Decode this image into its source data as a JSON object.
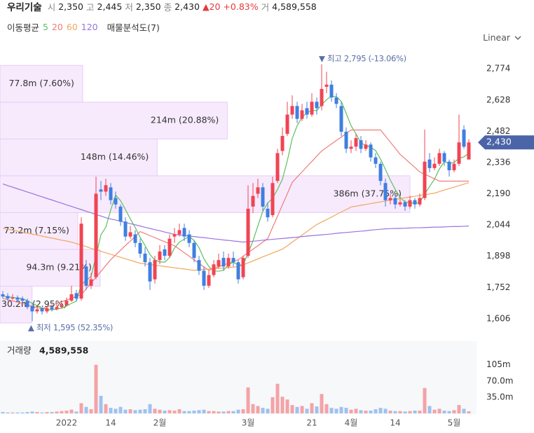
{
  "header": {
    "name": "우리기술",
    "quote": [
      {
        "label": "시",
        "value": "2,350"
      },
      {
        "label": "고",
        "value": "2,445"
      },
      {
        "label": "저",
        "value": "2,350"
      },
      {
        "label": "종",
        "value": "2,430"
      }
    ],
    "change": "▲20 +0.83%",
    "volume_label": "거",
    "volume": "4,589,558"
  },
  "legend": {
    "title": "이동평균",
    "profile": "매물분석도(7)"
  },
  "scale_menu": "Linear",
  "chart_data": {
    "type": "candlestick",
    "x": [
      null,
      null,
      null,
      null,
      null,
      null,
      null,
      null,
      null,
      null,
      null,
      null,
      null,
      "2022",
      null,
      null,
      null,
      null,
      null,
      null,
      null,
      null,
      "14",
      null,
      null,
      null,
      null,
      null,
      null,
      null,
      null,
      null,
      "2월",
      null,
      null,
      null,
      null,
      null,
      null,
      null,
      null,
      null,
      null,
      null,
      null,
      null,
      null,
      null,
      null,
      null,
      "3월",
      null,
      null,
      null,
      null,
      null,
      null,
      null,
      null,
      null,
      null,
      null,
      null,
      "21",
      null,
      null,
      null,
      null,
      null,
      null,
      null,
      "4월",
      null,
      null,
      null,
      null,
      null,
      null,
      null,
      null,
      "14",
      null,
      null,
      null,
      null,
      null,
      null,
      null,
      null,
      null,
      null,
      null,
      "5월",
      null,
      null,
      null
    ],
    "candles": [
      [
        1720,
        1735,
        1700,
        1710
      ],
      [
        1712,
        1725,
        1690,
        1700
      ],
      [
        1700,
        1720,
        1695,
        1705
      ],
      [
        1705,
        1715,
        1685,
        1695
      ],
      [
        1700,
        1710,
        1680,
        1690
      ],
      [
        1690,
        1700,
        1650,
        1660
      ],
      [
        1665,
        1680,
        1595,
        1640
      ],
      [
        1640,
        1665,
        1630,
        1650
      ],
      [
        1655,
        1660,
        1625,
        1640
      ],
      [
        1640,
        1665,
        1630,
        1655
      ],
      [
        1660,
        1670,
        1640,
        1650
      ],
      [
        1650,
        1675,
        1645,
        1660
      ],
      [
        1660,
        1690,
        1655,
        1670
      ],
      [
        1670,
        1705,
        1665,
        1690
      ],
      [
        1690,
        1760,
        1685,
        1720
      ],
      [
        1725,
        1740,
        1690,
        1700
      ],
      [
        1700,
        2080,
        1690,
        2050
      ],
      [
        1850,
        1880,
        1740,
        1760
      ],
      [
        1760,
        1820,
        1745,
        1790
      ],
      [
        1800,
        2270,
        1790,
        2190
      ],
      [
        2210,
        2250,
        2160,
        2200
      ],
      [
        2200,
        2260,
        2180,
        2230
      ],
      [
        2220,
        2240,
        2140,
        2160
      ],
      [
        2170,
        2200,
        2120,
        2140
      ],
      [
        2130,
        2140,
        2040,
        2060
      ],
      [
        2060,
        2080,
        1970,
        1990
      ],
      [
        1990,
        2040,
        1980,
        2010
      ],
      [
        2000,
        2020,
        1940,
        1960
      ],
      [
        1960,
        1980,
        1890,
        1910
      ],
      [
        1910,
        1940,
        1850,
        1870
      ],
      [
        1870,
        1890,
        1740,
        1780
      ],
      [
        1790,
        1900,
        1770,
        1880
      ],
      [
        1880,
        1950,
        1860,
        1920
      ],
      [
        1930,
        1950,
        1880,
        1900
      ],
      [
        1900,
        2000,
        1890,
        1980
      ],
      [
        1990,
        2030,
        1960,
        2000
      ],
      [
        2000,
        2050,
        1990,
        2020
      ],
      [
        2030,
        2050,
        1970,
        1990
      ],
      [
        2000,
        2020,
        1940,
        1960
      ],
      [
        1960,
        1970,
        1870,
        1890
      ],
      [
        1880,
        1900,
        1810,
        1830
      ],
      [
        1830,
        1850,
        1740,
        1760
      ],
      [
        1760,
        1830,
        1750,
        1810
      ],
      [
        1810,
        1880,
        1800,
        1860
      ],
      [
        1850,
        1910,
        1840,
        1880
      ],
      [
        1890,
        1920,
        1830,
        1850
      ],
      [
        1850,
        1910,
        1840,
        1890
      ],
      [
        1890,
        1920,
        1850,
        1870
      ],
      [
        1870,
        1880,
        1770,
        1790
      ],
      [
        1800,
        1900,
        1790,
        1890
      ],
      [
        1900,
        2230,
        1890,
        2120
      ],
      [
        2130,
        2240,
        2100,
        2180
      ],
      [
        2190,
        2260,
        2170,
        2220
      ],
      [
        2220,
        2240,
        2110,
        2130
      ],
      [
        2120,
        2150,
        2060,
        2080
      ],
      [
        2090,
        2270,
        2080,
        2240
      ],
      [
        2250,
        2400,
        2240,
        2380
      ],
      [
        2390,
        2500,
        2370,
        2460
      ],
      [
        2470,
        2620,
        2460,
        2560
      ],
      [
        2560,
        2650,
        2540,
        2600
      ],
      [
        2600,
        2620,
        2520,
        2540
      ],
      [
        2540,
        2610,
        2530,
        2580
      ],
      [
        2590,
        2620,
        2540,
        2560
      ],
      [
        2560,
        2660,
        2550,
        2620
      ],
      [
        2620,
        2640,
        2560,
        2590
      ],
      [
        2600,
        2795,
        2580,
        2680
      ],
      [
        2690,
        2760,
        2660,
        2700
      ],
      [
        2700,
        2720,
        2620,
        2640
      ],
      [
        2640,
        2660,
        2590,
        2610
      ],
      [
        2600,
        2620,
        2460,
        2480
      ],
      [
        2480,
        2500,
        2380,
        2400
      ],
      [
        2400,
        2440,
        2380,
        2410
      ],
      [
        2410,
        2470,
        2390,
        2450
      ],
      [
        2440,
        2460,
        2380,
        2400
      ],
      [
        2400,
        2440,
        2390,
        2420
      ],
      [
        2420,
        2430,
        2340,
        2360
      ],
      [
        2360,
        2380,
        2310,
        2330
      ],
      [
        2330,
        2340,
        2230,
        2250
      ],
      [
        2240,
        2260,
        2130,
        2160
      ],
      [
        2160,
        2190,
        2140,
        2170
      ],
      [
        2170,
        2180,
        2120,
        2140
      ],
      [
        2140,
        2170,
        2130,
        2150
      ],
      [
        2150,
        2160,
        2110,
        2130
      ],
      [
        2130,
        2180,
        2120,
        2160
      ],
      [
        2160,
        2170,
        2120,
        2140
      ],
      [
        2140,
        2190,
        2130,
        2170
      ],
      [
        2170,
        2490,
        2160,
        2340
      ],
      [
        2350,
        2380,
        2290,
        2310
      ],
      [
        2310,
        2360,
        2300,
        2330
      ],
      [
        2330,
        2400,
        2320,
        2380
      ],
      [
        2380,
        2390,
        2320,
        2340
      ],
      [
        2340,
        2350,
        2270,
        2300
      ],
      [
        2300,
        2350,
        2290,
        2330
      ],
      [
        2330,
        2560,
        2320,
        2430
      ],
      [
        2490,
        2510,
        2400,
        2410
      ],
      [
        2350,
        2445,
        2350,
        2430
      ]
    ],
    "colors": {
      "up": "#f04452",
      "down": "#3f7fe0",
      "volume_up": "#f3a3a6",
      "volume_down": "#9fc2ee"
    },
    "ylim": [
      1540,
      2850
    ],
    "yticks": [
      {
        "value": 1606,
        "label": "1,606"
      },
      {
        "value": 1752,
        "label": "1,752"
      },
      {
        "value": 1898,
        "label": "1,898"
      },
      {
        "value": 2044,
        "label": "2,044"
      },
      {
        "value": 2190,
        "label": "2,190"
      },
      {
        "value": 2336,
        "label": "2,336"
      },
      {
        "value": 2482,
        "label": "2,482"
      },
      {
        "value": 2628,
        "label": "2,628"
      },
      {
        "value": 2774,
        "label": "2,774"
      }
    ],
    "ma": [
      {
        "name": "5",
        "color": "#5cc05c",
        "values": [
          1712,
          1708,
          1706,
          1702,
          1700,
          1690,
          1678,
          1667,
          1656,
          1649,
          1647,
          1651,
          1655,
          1665,
          1678,
          1688,
          1766,
          1784,
          1804,
          1898,
          1998,
          2034,
          2114,
          2184,
          2158,
          2116,
          2072,
          2032,
          1986,
          1948,
          1906,
          1880,
          1872,
          1870,
          1892,
          1936,
          1964,
          1978,
          1990,
          1972,
          1938,
          1886,
          1850,
          1830,
          1828,
          1832,
          1858,
          1870,
          1856,
          1858,
          1912,
          1970,
          2040,
          2108,
          2146,
          2170,
          2210,
          2258,
          2344,
          2448,
          2508,
          2548,
          2568,
          2580,
          2578,
          2606,
          2630,
          2646,
          2644,
          2622,
          2566,
          2508,
          2470,
          2428,
          2416,
          2408,
          2392,
          2352,
          2304,
          2254,
          2210,
          2174,
          2150,
          2150,
          2144,
          2150,
          2188,
          2224,
          2258,
          2306,
          2340,
          2332,
          2336,
          2356,
          2362,
          2380
        ]
      },
      {
        "name": "20",
        "color": "#f07c7c",
        "values": [
          1701,
          1695,
          1689,
          1683,
          1677,
          1670,
          1664,
          1658,
          1652,
          1660,
          1669,
          1677,
          1685,
          1693,
          1702,
          1710,
          1718,
          1745,
          1773,
          1800,
          1827,
          1855,
          1882,
          1904,
          1926,
          1948,
          1969,
          1991,
          2013,
          2004,
          1994,
          1985,
          1975,
          1966,
          1956,
          1947,
          1931,
          1914,
          1898,
          1881,
          1865,
          1848,
          1832,
          1840,
          1849,
          1857,
          1865,
          1874,
          1882,
          1898,
          1915,
          1931,
          1947,
          1964,
          1980,
          2033,
          2085,
          2138,
          2190,
          2243,
          2268,
          2292,
          2317,
          2341,
          2366,
          2390,
          2406,
          2423,
          2439,
          2455,
          2472,
          2488,
          2488,
          2488,
          2488,
          2488,
          2488,
          2488,
          2460,
          2431,
          2403,
          2374,
          2354,
          2333,
          2313,
          2292,
          2281,
          2271,
          2260,
          2249,
          2249,
          2249,
          2249,
          2249,
          2249,
          2249
        ]
      },
      {
        "name": "60",
        "color": "#f2a65e",
        "values": [
          2029,
          2024,
          2020,
          2015,
          2010,
          2006,
          2001,
          1997,
          1992,
          1987,
          1983,
          1978,
          1973,
          1969,
          1964,
          1957,
          1950,
          1943,
          1935,
          1928,
          1921,
          1914,
          1907,
          1900,
          1893,
          1886,
          1879,
          1872,
          1865,
          1862,
          1859,
          1856,
          1853,
          1850,
          1847,
          1844,
          1841,
          1838,
          1835,
          1832,
          1834,
          1836,
          1838,
          1840,
          1841,
          1843,
          1845,
          1847,
          1849,
          1858,
          1867,
          1876,
          1885,
          1895,
          1904,
          1913,
          1922,
          1931,
          1947,
          1964,
          1980,
          1997,
          2013,
          2030,
          2046,
          2058,
          2069,
          2081,
          2093,
          2105,
          2116,
          2128,
          2132,
          2136,
          2140,
          2144,
          2148,
          2152,
          2156,
          2160,
          2164,
          2167,
          2171,
          2175,
          2178,
          2182,
          2186,
          2189,
          2193,
          2200,
          2207,
          2214,
          2221,
          2228,
          2235,
          2242
        ]
      },
      {
        "name": "120",
        "color": "#9b72e0",
        "values": [
          2236,
          2228,
          2221,
          2213,
          2206,
          2198,
          2191,
          2183,
          2176,
          2168,
          2161,
          2153,
          2146,
          2138,
          2131,
          2123,
          2116,
          2108,
          2101,
          2093,
          2086,
          2078,
          2072,
          2067,
          2061,
          2056,
          2050,
          2045,
          2039,
          2033,
          2028,
          2022,
          2017,
          2011,
          2006,
          2000,
          1997,
          1995,
          1992,
          1990,
          1987,
          1985,
          1982,
          1979,
          1977,
          1974,
          1972,
          1969,
          1967,
          1964,
          1966,
          1968,
          1970,
          1973,
          1975,
          1977,
          1979,
          1981,
          1983,
          1985,
          1987,
          1990,
          1992,
          1994,
          1996,
          1998,
          2000,
          2002,
          2005,
          2007,
          2009,
          2011,
          2013,
          2015,
          2017,
          2020,
          2022,
          2024,
          2026,
          2027,
          2028,
          2028,
          2029,
          2030,
          2031,
          2031,
          2032,
          2033,
          2034,
          2034,
          2035,
          2036,
          2037,
          2037,
          2038,
          2039
        ]
      }
    ],
    "profile": {
      "bins": [
        1586,
        1758,
        1930,
        2102,
        2274,
        2446,
        2618,
        2790
      ],
      "values": [
        30.2,
        94.3,
        73.2,
        386,
        148,
        214,
        77.8
      ],
      "value_labels": [
        "30.2m (2.95%)",
        "94.3m (9.21%)",
        "73.2m (7.15%)",
        "386m (37.75%)",
        "148m (14.46%)",
        "214m (20.88%)",
        "77.8m (7.60%)"
      ],
      "color": "#f7eafd",
      "border": "#e6cdf5"
    },
    "high_label": "▼ 최고 2,795 (-13.06%)",
    "low_label": "▲ 최저 1,595 (52.35%)",
    "last_label": "2,430",
    "last_color": "#4b64a8",
    "volume": {
      "title": "거래량",
      "value_label": "4,589,558",
      "values": [
        3,
        2,
        2,
        2,
        2,
        3,
        4,
        3,
        2,
        3,
        3,
        4,
        5,
        6,
        8,
        4,
        22,
        14,
        9,
        105,
        38,
        20,
        12,
        10,
        14,
        8,
        9,
        7,
        8,
        9,
        20,
        10,
        8,
        6,
        7,
        6,
        9,
        5,
        5,
        6,
        7,
        8,
        5,
        5,
        4,
        4,
        5,
        5,
        8,
        9,
        56,
        20,
        16,
        12,
        10,
        35,
        64,
        36,
        30,
        18,
        14,
        16,
        10,
        22,
        15,
        42,
        20,
        12,
        10,
        14,
        12,
        8,
        10,
        7,
        6,
        6,
        9,
        12,
        10,
        6,
        5,
        5,
        4,
        5,
        6,
        6,
        55,
        16,
        8,
        10,
        6,
        5,
        7,
        18,
        10,
        4.589558
      ],
      "ylim": [
        0,
        156
      ],
      "yticks": [
        {
          "value": 35,
          "label": "35.0m"
        },
        {
          "value": 70,
          "label": "70.0m"
        },
        {
          "value": 105,
          "label": "105m"
        }
      ]
    }
  }
}
